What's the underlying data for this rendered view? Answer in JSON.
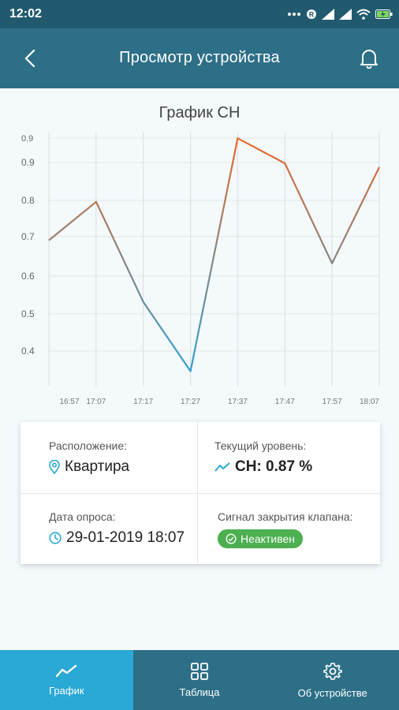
{
  "status_bar": {
    "time": "12:02"
  },
  "header": {
    "title": "Просмотр устройства",
    "back_icon": "back-arrow-icon",
    "bell_icon": "bell-icon"
  },
  "chart_data": {
    "type": "line",
    "title": "График CH",
    "x": [
      "16:57",
      "17:07",
      "17:17",
      "17:27",
      "17:37",
      "17:47",
      "17:57",
      "18:07"
    ],
    "series": [
      {
        "values": [
          0.68,
          0.78,
          0.52,
          0.34,
          0.945,
          0.88,
          0.62,
          0.87
        ]
      }
    ],
    "y_ticks": [
      "0.9",
      "0.9",
      "0.8",
      "0.7",
      "0.6",
      "0.5",
      "0.4"
    ],
    "ylim": [
      0.3,
      0.96
    ],
    "grid": true,
    "colors": {
      "low": "#29a3d8",
      "high": "#e66a2c"
    }
  },
  "info": {
    "location_label": "Расположение:",
    "location_value": "Квартира",
    "level_label": "Текущий уровень:",
    "level_value": "CH: 0.87 %",
    "date_label": "Дата опроса:",
    "date_value": "29-01-2019 18:07",
    "valve_label": "Сигнал закрытия клапана:",
    "valve_status": "Неактивен"
  },
  "nav": {
    "items": [
      {
        "label": "График",
        "icon": "chart-icon",
        "active": true
      },
      {
        "label": "Таблица",
        "icon": "grid-icon",
        "active": false
      },
      {
        "label": "Об устройстве",
        "icon": "gear-icon",
        "active": false
      }
    ]
  },
  "colors": {
    "header": "#2d6f87",
    "status_bar": "#215a6f",
    "nav_active": "#2aa8d6",
    "badge": "#4caf50",
    "accent": "#2aa8d6"
  }
}
